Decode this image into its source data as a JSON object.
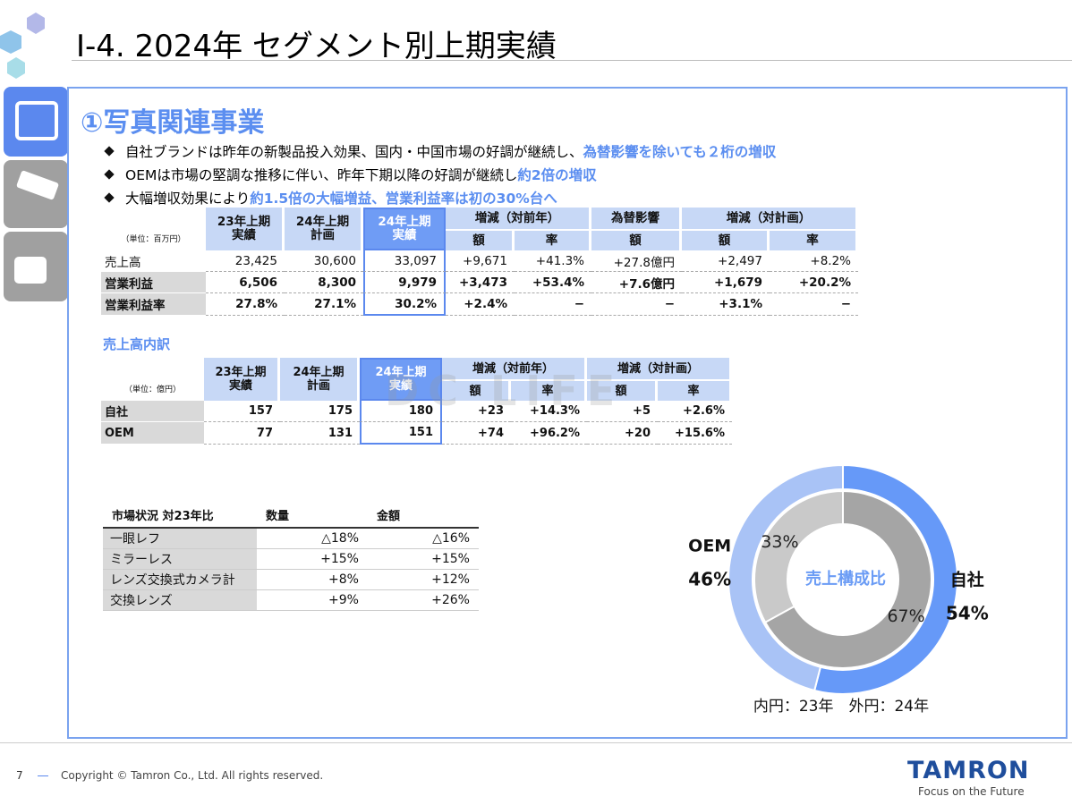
{
  "header": {
    "title": "Ⅰ-4. 2024年 セグメント別上期実績"
  },
  "section": {
    "title": "①写真関連事業",
    "bullets": [
      {
        "text": "自社ブランドは昨年の新製品投入効果、国内・中国市場の好調が継続し、",
        "highlight": "為替影響を除いても２桁の増収"
      },
      {
        "text": "OEMは市場の堅調な推移に伴い、昨年下期以降の好調が継続し",
        "highlight": "約2倍の増収"
      },
      {
        "text": "大幅増収効果により",
        "highlight": "約1.5倍の大幅増益、営業利益率は初の30%台へ"
      }
    ]
  },
  "table1": {
    "unit": "（単位：百万円）",
    "columns": [
      "23年上期\n実績",
      "24年上期\n計画",
      "24年上期\n実績"
    ],
    "groups": [
      {
        "title": "増減（対前年）",
        "subs": [
          "額",
          "率"
        ]
      },
      {
        "title": "為替影響",
        "subs": [
          "額"
        ]
      },
      {
        "title": "増減（対計画）",
        "subs": [
          "額",
          "率"
        ]
      }
    ],
    "rows": [
      [
        "売上高",
        "23,425",
        "30,600",
        "33,097",
        "+9,671",
        "+41.3%",
        "+27.8億円",
        "+2,497",
        "+8.2%"
      ],
      [
        "営業利益",
        "6,506",
        "8,300",
        "9,979",
        "+3,473",
        "+53.4%",
        "+7.6億円",
        "+1,679",
        "+20.2%"
      ],
      [
        "営業利益率",
        "27.8%",
        "27.1%",
        "30.2%",
        "+2.4%",
        "−",
        "−",
        "+3.1%",
        "−"
      ]
    ]
  },
  "breakdown_title": "売上高内訳",
  "table2": {
    "unit": "（単位：億円）",
    "columns": [
      "23年上期\n実績",
      "24年上期\n計画",
      "24年上期\n実績"
    ],
    "groups": [
      {
        "title": "増減（対前年）",
        "subs": [
          "額",
          "率"
        ]
      },
      {
        "title": "増減（対計画）",
        "subs": [
          "額",
          "率"
        ]
      }
    ],
    "rows": [
      [
        "自社",
        "157",
        "175",
        "180",
        "+23",
        "+14.3%",
        "+5",
        "+2.6%"
      ],
      [
        "OEM",
        "77",
        "131",
        "151",
        "+74",
        "+96.2%",
        "+20",
        "+15.6%"
      ]
    ]
  },
  "watermark": "DC LIFE",
  "market": {
    "headers": [
      "市場状況 対23年比",
      "数量",
      "金額"
    ],
    "rows": [
      [
        "一眼レフ",
        "△18%",
        "△16%"
      ],
      [
        "ミラーレス",
        "+15%",
        "+15%"
      ],
      [
        "レンズ交換式カメラ計",
        "+8%",
        "+12%"
      ],
      [
        "交換レンズ",
        "+9%",
        "+26%"
      ]
    ]
  },
  "donut": {
    "center": "売上構成比",
    "note": "内円：23年　外円：24年",
    "outer": [
      {
        "name": "自社",
        "value": 54,
        "label": "54%",
        "color": "#6699f8"
      },
      {
        "name": "OEM",
        "value": 46,
        "label": "46%",
        "color": "#a9c3f6"
      }
    ],
    "inner": [
      {
        "value": 67,
        "label": "67%",
        "color": "#a5a5a5"
      },
      {
        "value": 33,
        "label": "33%",
        "color": "#c9c9c9"
      }
    ]
  },
  "footer": {
    "page": "7",
    "copyright": "Copyright © Tamron Co., Ltd. All rights reserved.",
    "brand": "TAMRON",
    "tagline": "Focus on the Future"
  }
}
